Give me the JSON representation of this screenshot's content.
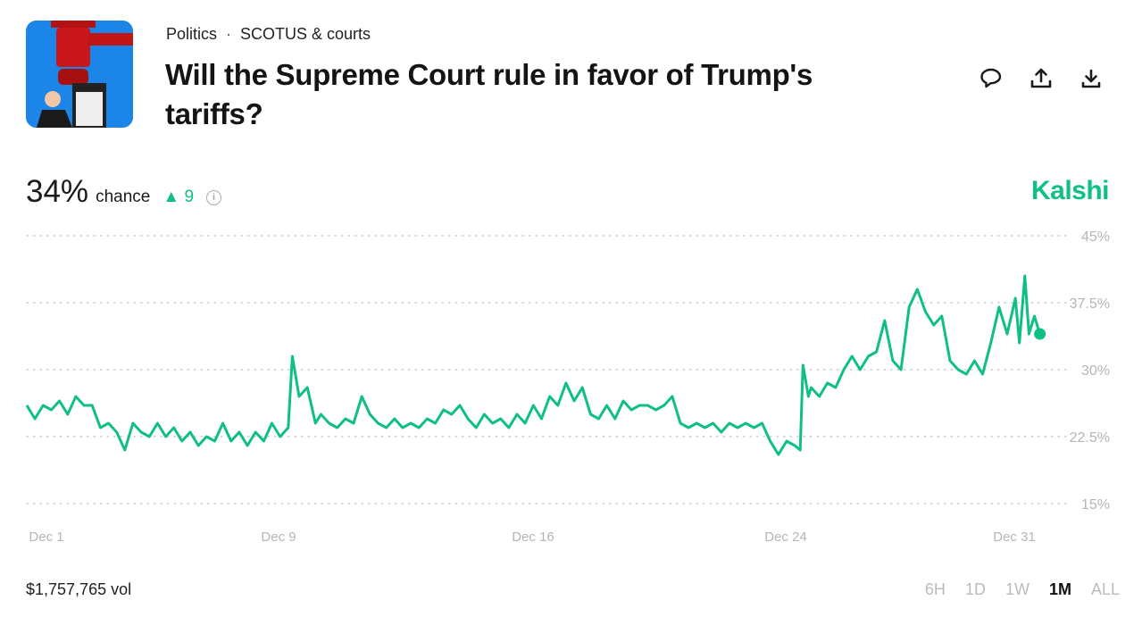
{
  "header": {
    "breadcrumb": [
      "Politics",
      "SCOTUS & courts"
    ],
    "breadcrumb_separator": "·",
    "title": "Will the Supreme Court rule in favor of Trump's tariffs?",
    "actions": [
      "comment-icon",
      "share-icon",
      "download-icon"
    ]
  },
  "summary": {
    "percent": "34%",
    "chance_label": "chance",
    "delta": "9",
    "delta_direction": "up",
    "info_icon": "info-icon",
    "brand": "Kalshi"
  },
  "colors": {
    "accent": "#0fbf85",
    "grid": "#cccccc",
    "axis_text": "#b5b5b5"
  },
  "chart_data": {
    "type": "line",
    "ylim": [
      15,
      45
    ],
    "yticks": [
      "45%",
      "37.5%",
      "30%",
      "22.5%",
      "15%"
    ],
    "ytick_values": [
      45,
      37.5,
      30,
      22.5,
      15
    ],
    "xticks": [
      "Dec 1",
      "Dec 9",
      "Dec 16",
      "Dec 24",
      "Dec 31"
    ],
    "grid": "horizontal dotted",
    "series": [
      {
        "color": "#0fbf85",
        "points": [
          [
            "Dec 1 00:00",
            26
          ],
          [
            "Dec 1 06:00",
            24.5
          ],
          [
            "Dec 1 12:00",
            26
          ],
          [
            "Dec 1 18:00",
            25.5
          ],
          [
            "Dec 2 00:00",
            26.5
          ],
          [
            "Dec 2 06:00",
            25
          ],
          [
            "Dec 2 12:00",
            27
          ],
          [
            "Dec 2 18:00",
            26
          ],
          [
            "Dec 3 00:00",
            26
          ],
          [
            "Dec 3 06:00",
            23.5
          ],
          [
            "Dec 3 12:00",
            24
          ],
          [
            "Dec 3 18:00",
            23
          ],
          [
            "Dec 4 00:00",
            21
          ],
          [
            "Dec 4 06:00",
            24
          ],
          [
            "Dec 4 12:00",
            23
          ],
          [
            "Dec 4 18:00",
            22.5
          ],
          [
            "Dec 5 00:00",
            24
          ],
          [
            "Dec 5 06:00",
            22.5
          ],
          [
            "Dec 5 12:00",
            23.5
          ],
          [
            "Dec 5 18:00",
            22
          ],
          [
            "Dec 6 00:00",
            23
          ],
          [
            "Dec 6 06:00",
            21.5
          ],
          [
            "Dec 6 12:00",
            22.5
          ],
          [
            "Dec 6 18:00",
            22
          ],
          [
            "Dec 7 00:00",
            24
          ],
          [
            "Dec 7 06:00",
            22
          ],
          [
            "Dec 7 12:00",
            23
          ],
          [
            "Dec 7 18:00",
            21.5
          ],
          [
            "Dec 8 00:00",
            23
          ],
          [
            "Dec 8 06:00",
            22
          ],
          [
            "Dec 8 12:00",
            24
          ],
          [
            "Dec 8 18:00",
            22.5
          ],
          [
            "Dec 9 00:00",
            23.5
          ],
          [
            "Dec 9 03:00",
            31.5
          ],
          [
            "Dec 9 08:00",
            27
          ],
          [
            "Dec 9 14:00",
            28
          ],
          [
            "Dec 9 20:00",
            24
          ],
          [
            "Dec 10 00:00",
            25
          ],
          [
            "Dec 10 06:00",
            24
          ],
          [
            "Dec 10 12:00",
            23.5
          ],
          [
            "Dec 10 18:00",
            24.5
          ],
          [
            "Dec 11 00:00",
            24
          ],
          [
            "Dec 11 06:00",
            27
          ],
          [
            "Dec 11 12:00",
            25
          ],
          [
            "Dec 11 18:00",
            24
          ],
          [
            "Dec 12 00:00",
            23.5
          ],
          [
            "Dec 12 06:00",
            24.5
          ],
          [
            "Dec 12 12:00",
            23.5
          ],
          [
            "Dec 12 18:00",
            24
          ],
          [
            "Dec 13 00:00",
            23.5
          ],
          [
            "Dec 13 06:00",
            24.5
          ],
          [
            "Dec 13 12:00",
            24
          ],
          [
            "Dec 13 18:00",
            25.5
          ],
          [
            "Dec 14 00:00",
            25
          ],
          [
            "Dec 14 06:00",
            26
          ],
          [
            "Dec 14 12:00",
            24.5
          ],
          [
            "Dec 14 18:00",
            23.5
          ],
          [
            "Dec 15 00:00",
            25
          ],
          [
            "Dec 15 06:00",
            24
          ],
          [
            "Dec 15 12:00",
            24.5
          ],
          [
            "Dec 15 18:00",
            23.5
          ],
          [
            "Dec 16 00:00",
            25
          ],
          [
            "Dec 16 06:00",
            24
          ],
          [
            "Dec 16 12:00",
            26
          ],
          [
            "Dec 16 18:00",
            24.5
          ],
          [
            "Dec 17 00:00",
            27
          ],
          [
            "Dec 17 06:00",
            26
          ],
          [
            "Dec 17 12:00",
            28.5
          ],
          [
            "Dec 17 18:00",
            26.5
          ],
          [
            "Dec 18 00:00",
            28
          ],
          [
            "Dec 18 06:00",
            25
          ],
          [
            "Dec 18 12:00",
            24.5
          ],
          [
            "Dec 18 18:00",
            26
          ],
          [
            "Dec 19 00:00",
            24.5
          ],
          [
            "Dec 19 06:00",
            26.5
          ],
          [
            "Dec 19 12:00",
            25.5
          ],
          [
            "Dec 19 18:00",
            26
          ],
          [
            "Dec 20 00:00",
            26
          ],
          [
            "Dec 20 06:00",
            25.5
          ],
          [
            "Dec 20 12:00",
            26
          ],
          [
            "Dec 20 18:00",
            27
          ],
          [
            "Dec 21 00:00",
            24
          ],
          [
            "Dec 21 06:00",
            23.5
          ],
          [
            "Dec 21 12:00",
            24
          ],
          [
            "Dec 21 18:00",
            23.5
          ],
          [
            "Dec 22 00:00",
            24
          ],
          [
            "Dec 22 06:00",
            23
          ],
          [
            "Dec 22 12:00",
            24
          ],
          [
            "Dec 22 18:00",
            23.5
          ],
          [
            "Dec 23 00:00",
            24
          ],
          [
            "Dec 23 06:00",
            23.5
          ],
          [
            "Dec 23 12:00",
            24
          ],
          [
            "Dec 23 18:00",
            22
          ],
          [
            "Dec 24 00:00",
            20.5
          ],
          [
            "Dec 24 06:00",
            22
          ],
          [
            "Dec 24 12:00",
            21.5
          ],
          [
            "Dec 24 16:00",
            21
          ],
          [
            "Dec 24 18:00",
            30.5
          ],
          [
            "Dec 24 22:00",
            27
          ],
          [
            "Dec 25 00:00",
            28
          ],
          [
            "Dec 25 06:00",
            27
          ],
          [
            "Dec 25 12:00",
            28.5
          ],
          [
            "Dec 25 18:00",
            28
          ],
          [
            "Dec 26 00:00",
            30
          ],
          [
            "Dec 26 06:00",
            31.5
          ],
          [
            "Dec 26 12:00",
            30
          ],
          [
            "Dec 26 18:00",
            31.5
          ],
          [
            "Dec 27 00:00",
            32
          ],
          [
            "Dec 27 06:00",
            35.5
          ],
          [
            "Dec 27 12:00",
            31
          ],
          [
            "Dec 27 18:00",
            30
          ],
          [
            "Dec 28 00:00",
            37
          ],
          [
            "Dec 28 06:00",
            39
          ],
          [
            "Dec 28 12:00",
            36.5
          ],
          [
            "Dec 28 18:00",
            35
          ],
          [
            "Dec 29 00:00",
            36
          ],
          [
            "Dec 29 06:00",
            31
          ],
          [
            "Dec 29 12:00",
            30
          ],
          [
            "Dec 29 18:00",
            29.5
          ],
          [
            "Dec 30 00:00",
            31
          ],
          [
            "Dec 30 06:00",
            29.5
          ],
          [
            "Dec 30 12:00",
            33
          ],
          [
            "Dec 30 18:00",
            37
          ],
          [
            "Dec 31 00:00",
            34
          ],
          [
            "Dec 31 06:00",
            38
          ],
          [
            "Dec 31 09:00",
            33
          ],
          [
            "Dec 31 13:00",
            40.5
          ],
          [
            "Dec 31 16:00",
            34
          ],
          [
            "Dec 31 20:00",
            36
          ],
          [
            "Jan 1 00:00",
            34
          ]
        ]
      }
    ]
  },
  "footer": {
    "volume": "$1,757,765 vol",
    "ranges": [
      "6H",
      "1D",
      "1W",
      "1M",
      "ALL"
    ],
    "active_range": "1M"
  }
}
